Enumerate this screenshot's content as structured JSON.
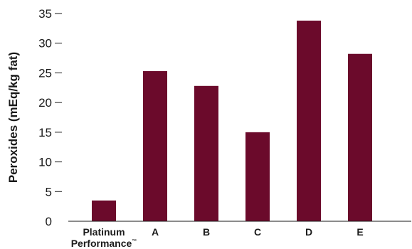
{
  "chart_data": {
    "type": "bar",
    "title": "",
    "xlabel": "",
    "ylabel": "Peroxides (mEq/kg fat)",
    "categories": [
      "Platinum Performance™",
      "A",
      "B",
      "C",
      "D",
      "E"
    ],
    "values": [
      3.5,
      25.3,
      22.8,
      15.0,
      33.8,
      28.2
    ],
    "ylim": [
      0,
      35
    ],
    "yticks": [
      0,
      5,
      10,
      15,
      20,
      25,
      30,
      35
    ],
    "grid": false,
    "bar_color": "#6b0a2b"
  }
}
